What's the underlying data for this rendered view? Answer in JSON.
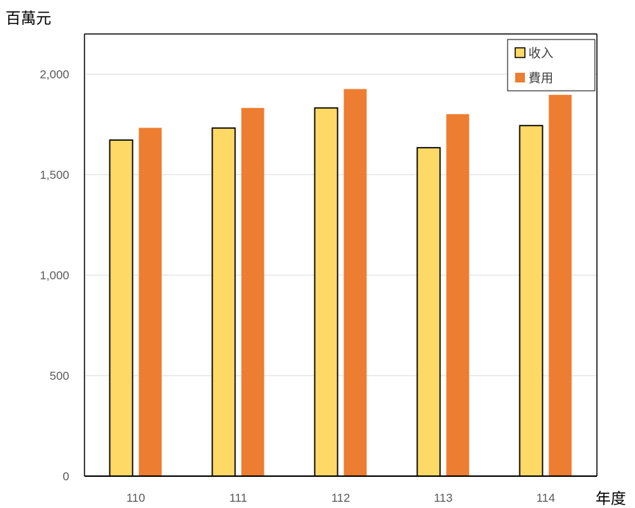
{
  "chart_data": {
    "type": "bar",
    "y_unit_label": "百萬元",
    "x_unit_label": "年度",
    "categories": [
      "110",
      "111",
      "112",
      "113",
      "114"
    ],
    "series": [
      {
        "name": "收入",
        "values": [
          1672,
          1732,
          1832,
          1634,
          1744
        ],
        "color": "#FFD966",
        "outline": "#000000"
      },
      {
        "name": "費用",
        "values": [
          1733,
          1832,
          1926,
          1801,
          1897
        ],
        "color": "#ED7D31",
        "outline": "none"
      }
    ],
    "ylim": [
      0,
      2200
    ],
    "yticks": [
      0,
      500,
      1000,
      1500,
      2000
    ],
    "ytick_labels": [
      "0",
      "500",
      "1,000",
      "1,500",
      "2,000"
    ],
    "grid": true,
    "legend_position": "top-right"
  }
}
